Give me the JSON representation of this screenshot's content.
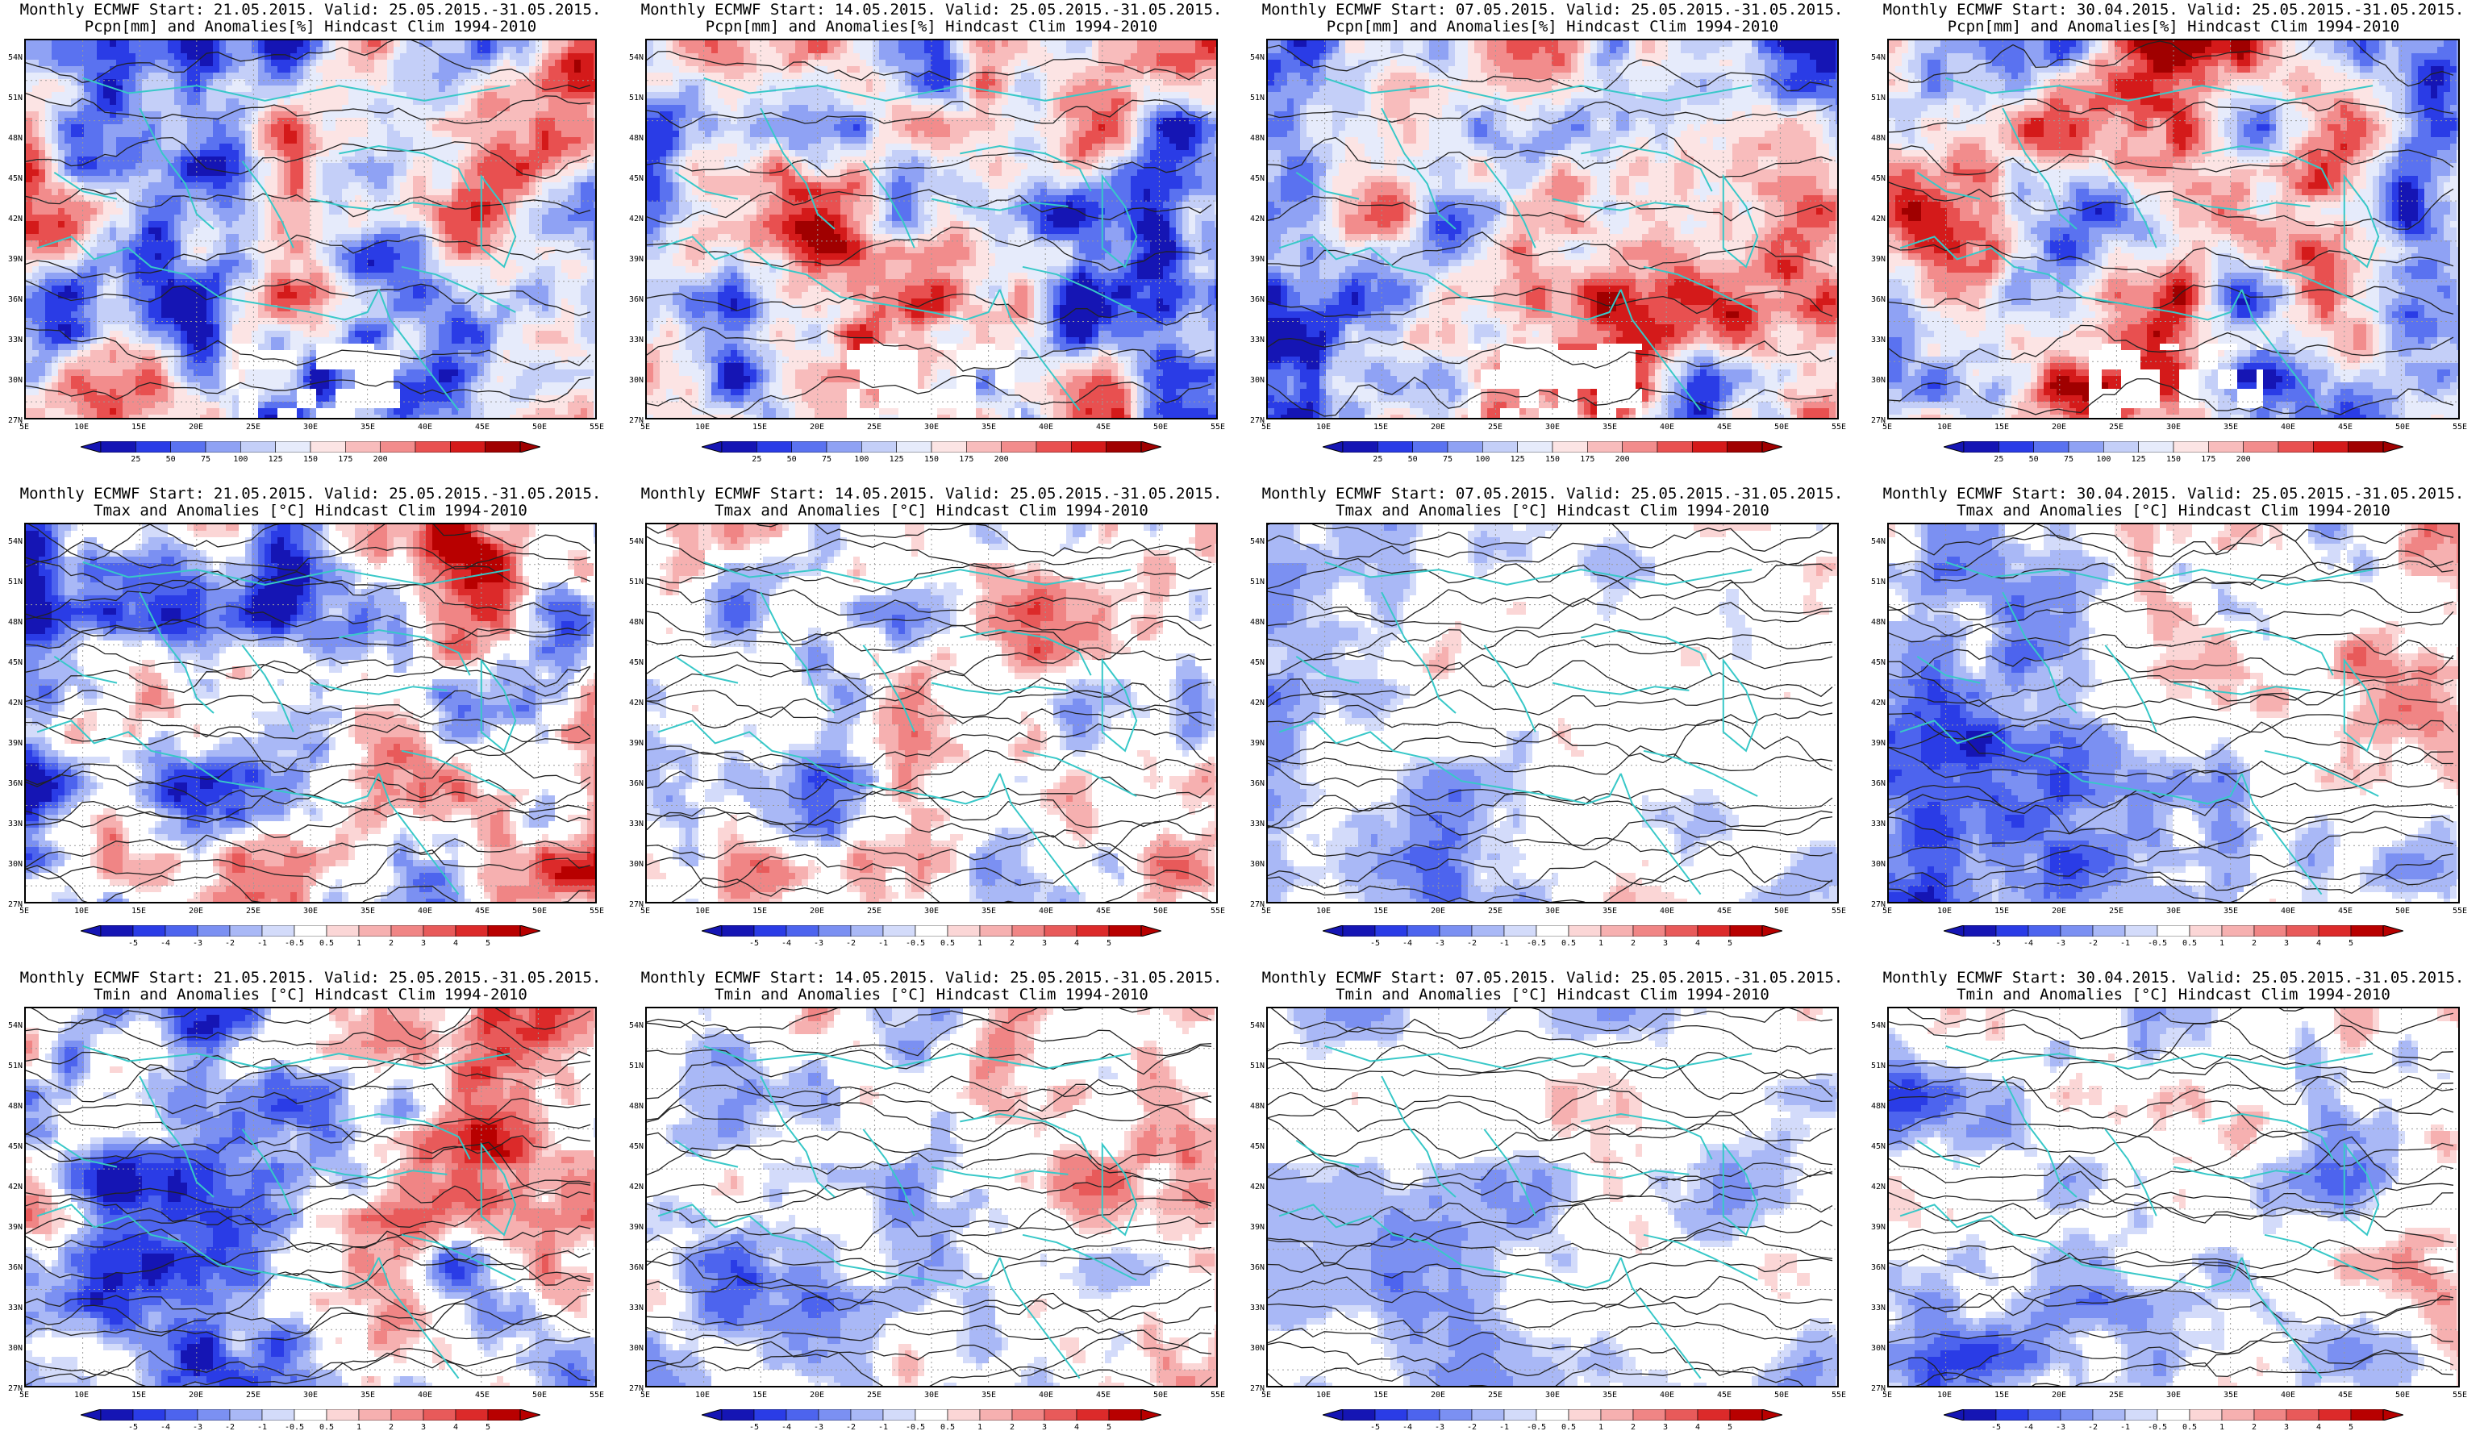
{
  "panels": [
    {
      "id": "pcpn-2105",
      "l1": "Monthly ECMWF Start: 21.05.2015. Valid: 25.05.2015.-31.05.2015.",
      "l2": "Pcpn[mm] and Anomalies[%] Hindcast Clim 1994-2010",
      "kind": "pcpn"
    },
    {
      "id": "pcpn-1405",
      "l1": "Monthly ECMWF Start: 14.05.2015. Valid: 25.05.2015.-31.05.2015.",
      "l2": "Pcpn[mm] and Anomalies[%] Hindcast Clim 1994-2010",
      "kind": "pcpn"
    },
    {
      "id": "pcpn-0705",
      "l1": "Monthly ECMWF Start: 07.05.2015. Valid: 25.05.2015.-31.05.2015.",
      "l2": "Pcpn[mm] and Anomalies[%] Hindcast Clim 1994-2010",
      "kind": "pcpn"
    },
    {
      "id": "pcpn-3004",
      "l1": "Monthly ECMWF Start: 30.04.2015. Valid: 25.05.2015.-31.05.2015.",
      "l2": "Pcpn[mm] and Anomalies[%] Hindcast Clim 1994-2010",
      "kind": "pcpn"
    },
    {
      "id": "tmax-2105",
      "l1": "Monthly ECMWF Start: 21.05.2015. Valid: 25.05.2015.-31.05.2015.",
      "l2": "Tmax and Anomalies [°C] Hindcast Clim 1994-2010",
      "kind": "temp"
    },
    {
      "id": "tmax-1405",
      "l1": "Monthly ECMWF Start: 14.05.2015. Valid: 25.05.2015.-31.05.2015.",
      "l2": "Tmax and Anomalies [°C] Hindcast Clim 1994-2010",
      "kind": "temp"
    },
    {
      "id": "tmax-0705",
      "l1": "Monthly ECMWF Start: 07.05.2015. Valid: 25.05.2015.-31.05.2015.",
      "l2": "Tmax and Anomalies [°C] Hindcast Clim 1994-2010",
      "kind": "temp"
    },
    {
      "id": "tmax-3004",
      "l1": "Monthly ECMWF Start: 30.04.2015. Valid: 25.05.2015.-31.05.2015.",
      "l2": "Tmax and Anomalies [°C] Hindcast Clim 1994-2010",
      "kind": "temp"
    },
    {
      "id": "tmin-2105",
      "l1": "Monthly ECMWF Start: 21.05.2015. Valid: 25.05.2015.-31.05.2015.",
      "l2": "Tmin and Anomalies [°C] Hindcast Clim 1994-2010",
      "kind": "temp"
    },
    {
      "id": "tmin-1405",
      "l1": "Monthly ECMWF Start: 14.05.2015. Valid: 25.05.2015.-31.05.2015.",
      "l2": "Tmin and Anomalies [°C] Hindcast Clim 1994-2010",
      "kind": "temp"
    },
    {
      "id": "tmin-0705",
      "l1": "Monthly ECMWF Start: 07.05.2015. Valid: 25.05.2015.-31.05.2015.",
      "l2": "Tmin and Anomalies [°C] Hindcast Clim 1994-2010",
      "kind": "temp"
    },
    {
      "id": "tmin-3004",
      "l1": "Monthly ECMWF Start: 30.04.2015. Valid: 25.05.2015.-31.05.2015.",
      "l2": "Tmin and Anomalies [°C] Hindcast Clim 1994-2010",
      "kind": "temp"
    }
  ],
  "lat_ticks": [
    "54N",
    "51N",
    "48N",
    "45N",
    "42N",
    "39N",
    "36N",
    "33N",
    "30N",
    "27N"
  ],
  "lon_ticks": [
    "5E",
    "10E",
    "15E",
    "20E",
    "25E",
    "30E",
    "35E",
    "40E",
    "45E",
    "50E",
    "55E"
  ],
  "colorbars": {
    "pcpn": {
      "labels": [
        "25",
        "50",
        "75",
        "100",
        "125",
        "150",
        "175",
        "200"
      ],
      "colors": [
        "#1515b4",
        "#2a3ce6",
        "#5a72f0",
        "#8fa2f4",
        "#c4cff8",
        "#e6ebfb",
        "#fce4e4",
        "#f8bcbc",
        "#f28c8c",
        "#e85050",
        "#d41a1a",
        "#a00000"
      ]
    },
    "temp": {
      "labels": [
        "-5",
        "-4",
        "-3",
        "-2",
        "-1",
        "-0.5",
        "0.5",
        "1",
        "2",
        "3",
        "4",
        "5"
      ],
      "colors": [
        "#1515b4",
        "#2a3ce6",
        "#4d64ee",
        "#7b90f2",
        "#a9b8f6",
        "#d3dbfa",
        "#ffffff",
        "#fbd6d6",
        "#f6b0b0",
        "#f08585",
        "#e85a5a",
        "#dc2a2a",
        "#b80000"
      ]
    }
  },
  "legend_colors": {
    "coast": "#38c8c8",
    "contour": "#222222"
  }
}
